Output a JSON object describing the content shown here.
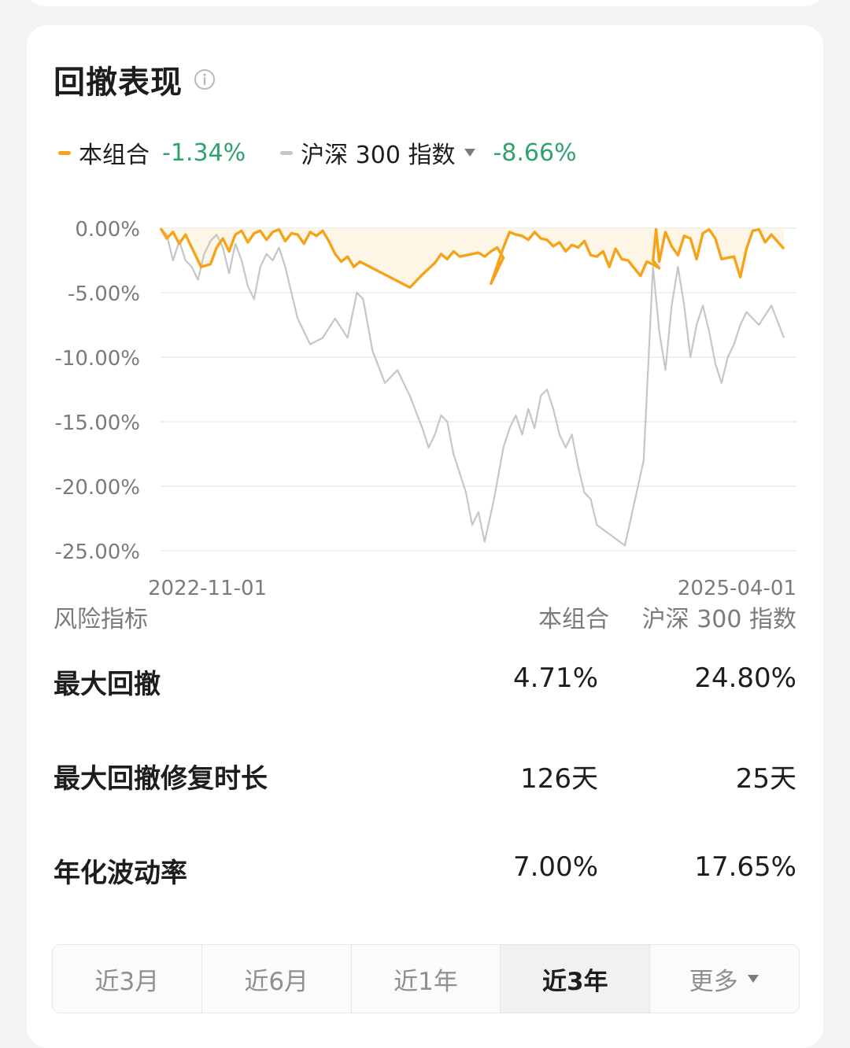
{
  "header": {
    "title": "回撤表现"
  },
  "legend": {
    "portfolio": {
      "label": "本组合",
      "value": "-1.34%",
      "color": "#f5a31a"
    },
    "benchmark": {
      "label": "沪深 300 指数",
      "value": "-8.66%",
      "color": "#c5c6ca"
    },
    "value_color": "#2fa36b"
  },
  "chart_data": {
    "type": "line",
    "y_ticks": [
      "0.00%",
      "-5.00%",
      "-10.00%",
      "-15.00%",
      "-20.00%",
      "-25.00%"
    ],
    "x_tick_labels": [
      "2022-11-01",
      "2025-04-01"
    ],
    "ylim": [
      -25,
      0
    ],
    "grid": true,
    "series": [
      {
        "name": "本组合",
        "color": "#f5a31a",
        "area_fill": "#fdf6e6",
        "values": [
          0.0,
          -0.8,
          -0.3,
          -1.2,
          -0.5,
          -3.0,
          -2.8,
          -1.5,
          -0.8,
          -1.8,
          -0.5,
          -0.2,
          -1.1,
          -0.4,
          -0.2,
          -0.9,
          -0.3,
          -0.1,
          -1.0,
          -0.4,
          -0.5,
          -1.2,
          -0.3,
          -0.6,
          -0.2,
          -1.0,
          -2.0,
          -2.6,
          -2.2,
          -3.0,
          -2.6,
          -4.6,
          -3.6,
          -2.7,
          -2.0,
          -2.4,
          -1.8,
          -2.2,
          -2.0,
          -1.9,
          -2.2,
          -1.8,
          -1.5,
          -2.3,
          -4.3,
          -1.5,
          -0.3,
          -0.5,
          -0.6,
          -0.9,
          -0.3,
          -0.8,
          -0.9,
          -1.4,
          -1.1,
          -1.8,
          -1.3,
          -1.5,
          -1.0,
          -2.1,
          -2.2,
          -1.8,
          -3.0,
          -1.6,
          -2.4,
          -2.5,
          -3.7,
          -2.6,
          -2.8,
          -3.1,
          -2.5,
          -0.1,
          -2.6,
          -0.3,
          -1.4,
          -2.1,
          -0.6,
          -0.8,
          -2.4,
          -0.4,
          -0.1,
          -0.8,
          -2.4,
          -2.3,
          -2.2,
          -3.8,
          -1.6,
          -0.2,
          -0.1,
          -1.1,
          -0.5,
          -1.6
        ],
        "x_fraction": [
          0.0,
          0.01,
          0.02,
          0.03,
          0.04,
          0.065,
          0.08,
          0.09,
          0.1,
          0.11,
          0.12,
          0.13,
          0.14,
          0.15,
          0.16,
          0.17,
          0.18,
          0.19,
          0.2,
          0.21,
          0.22,
          0.23,
          0.24,
          0.25,
          0.26,
          0.27,
          0.28,
          0.29,
          0.3,
          0.31,
          0.32,
          0.4,
          0.42,
          0.44,
          0.45,
          0.46,
          0.47,
          0.48,
          0.5,
          0.51,
          0.52,
          0.53,
          0.54,
          0.55,
          0.53,
          0.55,
          0.56,
          0.57,
          0.58,
          0.59,
          0.6,
          0.61,
          0.62,
          0.63,
          0.64,
          0.65,
          0.66,
          0.67,
          0.68,
          0.69,
          0.7,
          0.71,
          0.72,
          0.73,
          0.74,
          0.75,
          0.77,
          0.78,
          0.79,
          0.8,
          0.79,
          0.795,
          0.8,
          0.81,
          0.82,
          0.83,
          0.84,
          0.85,
          0.86,
          0.87,
          0.88,
          0.89,
          0.9,
          0.91,
          0.92,
          0.93,
          0.94,
          0.95,
          0.96,
          0.97,
          0.98,
          1.0
        ]
      },
      {
        "name": "沪深 300 指数",
        "color": "#c5c6ca",
        "values": [
          0.0,
          -0.5,
          -2.5,
          -1.0,
          -2.5,
          -3.0,
          -4.0,
          -2.0,
          -1.0,
          -0.5,
          -1.5,
          -3.5,
          -1.2,
          -2.5,
          -4.5,
          -5.5,
          -3.0,
          -2.0,
          -2.5,
          -1.5,
          -3.0,
          -5.0,
          -7.0,
          -9.0,
          -8.5,
          -7.0,
          -8.5,
          -5.0,
          -5.5,
          -9.5,
          -12.0,
          -11.0,
          -13.0,
          -15.5,
          -17.0,
          -16.0,
          -14.5,
          -15.0,
          -17.5,
          -19.0,
          -20.5,
          -23.0,
          -22.0,
          -24.3,
          -21.0,
          -17.0,
          -15.5,
          -14.5,
          -16.0,
          -14.0,
          -15.5,
          -13.0,
          -12.5,
          -14.0,
          -16.0,
          -17.0,
          -16.0,
          -18.5,
          -20.5,
          -21.0,
          -23.0,
          -24.6,
          -18.0,
          -3.0,
          -8.0,
          -11.0,
          -6.0,
          -3.0,
          -6.0,
          -10.0,
          -7.5,
          -6.0,
          -8.0,
          -10.5,
          -12.0,
          -10.0,
          -9.0,
          -7.5,
          -6.5,
          -7.5,
          -6.0,
          -8.5
        ],
        "x_fraction": [
          0.0,
          0.01,
          0.02,
          0.03,
          0.04,
          0.05,
          0.06,
          0.07,
          0.08,
          0.09,
          0.1,
          0.11,
          0.12,
          0.13,
          0.14,
          0.15,
          0.16,
          0.17,
          0.18,
          0.19,
          0.2,
          0.21,
          0.22,
          0.24,
          0.26,
          0.28,
          0.3,
          0.315,
          0.325,
          0.34,
          0.36,
          0.38,
          0.4,
          0.42,
          0.43,
          0.44,
          0.45,
          0.46,
          0.47,
          0.48,
          0.49,
          0.5,
          0.51,
          0.52,
          0.535,
          0.55,
          0.56,
          0.57,
          0.58,
          0.59,
          0.6,
          0.61,
          0.62,
          0.63,
          0.64,
          0.65,
          0.66,
          0.67,
          0.68,
          0.69,
          0.7,
          0.745,
          0.775,
          0.79,
          0.8,
          0.81,
          0.82,
          0.83,
          0.84,
          0.85,
          0.86,
          0.87,
          0.88,
          0.89,
          0.9,
          0.91,
          0.92,
          0.93,
          0.94,
          0.96,
          0.98,
          1.0
        ]
      }
    ]
  },
  "risk": {
    "header": {
      "name": "风险指标",
      "col1": "本组合",
      "col2": "沪深 300 指数"
    },
    "rows": [
      {
        "name": "最大回撤",
        "v1": "4.71%",
        "v2": "24.80%"
      },
      {
        "name": "最大回撤修复时长",
        "v1": "126天",
        "v2": "25天"
      },
      {
        "name": "年化波动率",
        "v1": "7.00%",
        "v2": "17.65%"
      }
    ]
  },
  "tabs": [
    {
      "label": "近3月",
      "active": false
    },
    {
      "label": "近6月",
      "active": false
    },
    {
      "label": "近1年",
      "active": false
    },
    {
      "label": "近3年",
      "active": true
    },
    {
      "label": "更多",
      "active": false,
      "dropdown": true
    }
  ]
}
